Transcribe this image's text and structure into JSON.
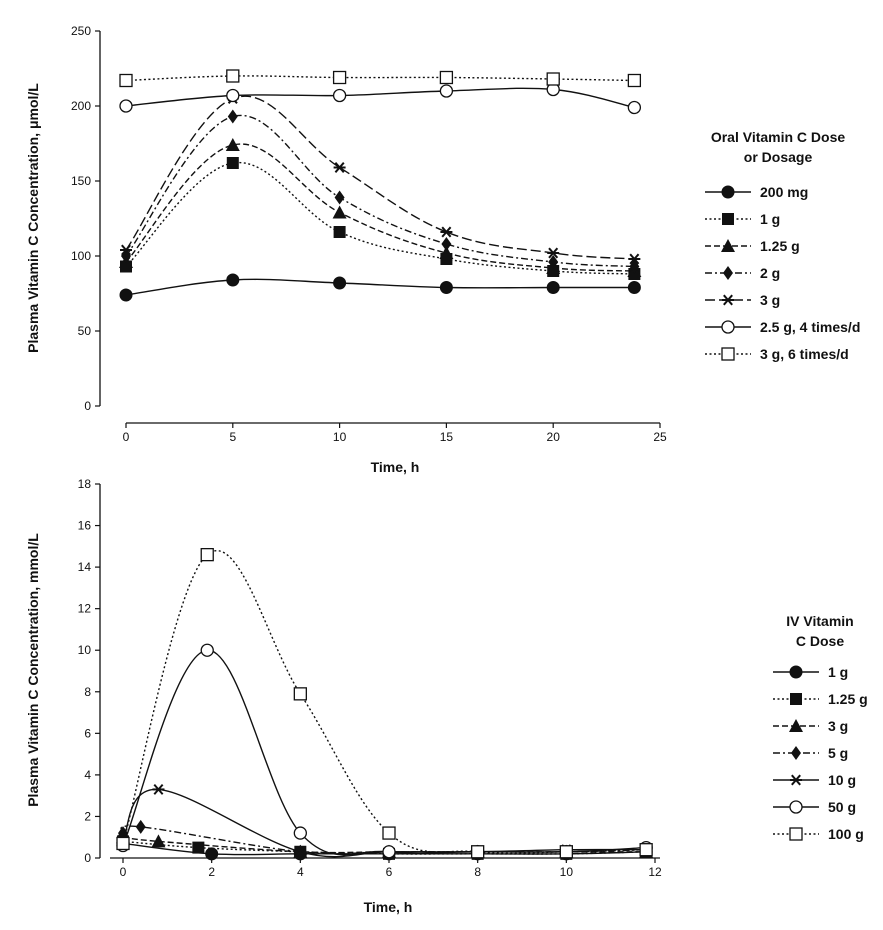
{
  "chart_data": [
    {
      "type": "line",
      "xlabel": "Time, h",
      "ylabel": "Plasma Vitamin C Concentration, μmol/L",
      "xlim": [
        0,
        25
      ],
      "ylim": [
        0,
        250
      ],
      "xticks": [
        "0",
        "5",
        "10",
        "15",
        "20",
        "25"
      ],
      "yticks": [
        "0",
        "50",
        "100",
        "150",
        "200",
        "250"
      ],
      "grid": false,
      "legend": {
        "title_line1": "Oral Vitamin C Dose",
        "title_line2": "or Dosage",
        "placement": "right"
      },
      "series": [
        {
          "name": "200 mg",
          "marker": "filled-circle",
          "line": "solid",
          "x": [
            0,
            5,
            10,
            15,
            20,
            23.8
          ],
          "y": [
            74,
            84,
            82,
            79,
            79,
            79
          ]
        },
        {
          "name": "1 g",
          "marker": "filled-square",
          "line": "dotted",
          "x": [
            0,
            5,
            10,
            15,
            20,
            23.8
          ],
          "y": [
            93,
            162,
            116,
            98,
            90,
            88
          ]
        },
        {
          "name": "1.25 g",
          "marker": "filled-triangle",
          "line": "dashed",
          "x": [
            0,
            5,
            10,
            15,
            20,
            23.8
          ],
          "y": [
            96,
            174,
            129,
            102,
            92,
            90
          ]
        },
        {
          "name": "2 g",
          "marker": "filled-diamond",
          "line": "dash-dot",
          "x": [
            0,
            5,
            10,
            15,
            20,
            23.8
          ],
          "y": [
            100,
            193,
            139,
            108,
            96,
            93
          ]
        },
        {
          "name": "3 g",
          "marker": "asterisk",
          "line": "long-dash",
          "x": [
            0,
            5,
            10,
            15,
            20,
            23.8
          ],
          "y": [
            104,
            205,
            159,
            116,
            102,
            98
          ]
        },
        {
          "name": "2.5 g, 4 times/d",
          "marker": "open-circle",
          "line": "solid",
          "x": [
            0,
            5,
            10,
            15,
            20,
            23.8
          ],
          "y": [
            200,
            207,
            207,
            210,
            211,
            199
          ]
        },
        {
          "name": "3 g, 6 times/d",
          "marker": "open-square",
          "line": "dotted",
          "x": [
            0,
            5,
            10,
            15,
            20,
            23.8
          ],
          "y": [
            217,
            220,
            219,
            219,
            218,
            217
          ]
        }
      ]
    },
    {
      "type": "line",
      "xlabel": "Time, h",
      "ylabel": "Plasma Vitamin C Concentration, mmol/L",
      "xlim": [
        0,
        12
      ],
      "ylim": [
        0,
        18
      ],
      "xticks": [
        "0",
        "2",
        "4",
        "6",
        "8",
        "10",
        "12"
      ],
      "yticks": [
        "0",
        "2",
        "4",
        "6",
        "8",
        "10",
        "12",
        "14",
        "16",
        "18"
      ],
      "grid": false,
      "legend": {
        "title_line1": "IV Vitamin",
        "title_line2": "C Dose",
        "placement": "right"
      },
      "series": [
        {
          "name": "1 g",
          "marker": "filled-circle",
          "line": "solid",
          "x": [
            0,
            2,
            4,
            6,
            8,
            10,
            11.8
          ],
          "y": [
            0.7,
            0.2,
            0.2,
            0.2,
            0.2,
            0.2,
            0.3
          ]
        },
        {
          "name": "1.25 g",
          "marker": "filled-square",
          "line": "dotted",
          "x": [
            0,
            1.7,
            4,
            6,
            8,
            10,
            11.8
          ],
          "y": [
            0.8,
            0.5,
            0.3,
            0.2,
            0.2,
            0.2,
            0.3
          ]
        },
        {
          "name": "3 g",
          "marker": "filled-triangle",
          "line": "dashed",
          "x": [
            0,
            0.8,
            4,
            6,
            8,
            10,
            11.8
          ],
          "y": [
            1.0,
            0.8,
            0.3,
            0.3,
            0.3,
            0.3,
            0.3
          ]
        },
        {
          "name": "5 g",
          "marker": "filled-diamond",
          "line": "dash-dot",
          "x": [
            0,
            0.4,
            4,
            6,
            8,
            10,
            11.8
          ],
          "y": [
            1.2,
            1.5,
            0.3,
            0.3,
            0.3,
            0.3,
            0.4
          ]
        },
        {
          "name": "10 g",
          "marker": "asterisk",
          "line": "solid",
          "x": [
            0,
            0.8,
            4,
            6,
            8,
            10,
            11.8
          ],
          "y": [
            0.9,
            3.3,
            0.3,
            0.3,
            0.3,
            0.4,
            0.4
          ]
        },
        {
          "name": "50 g",
          "marker": "open-circle",
          "line": "solid",
          "x": [
            0,
            1.9,
            4,
            6,
            8,
            10,
            11.8
          ],
          "y": [
            0.6,
            10.0,
            1.2,
            0.3,
            0.3,
            0.3,
            0.5
          ]
        },
        {
          "name": "100 g",
          "marker": "open-square",
          "line": "dotted",
          "x": [
            0,
            1.9,
            4,
            6,
            8,
            10,
            11.8
          ],
          "y": [
            0.7,
            14.6,
            7.9,
            1.2,
            0.3,
            0.3,
            0.4
          ]
        }
      ]
    }
  ]
}
